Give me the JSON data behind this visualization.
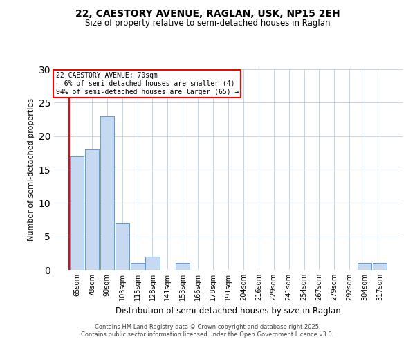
{
  "title1": "22, CAESTORY AVENUE, RAGLAN, USK, NP15 2EH",
  "title2": "Size of property relative to semi-detached houses in Raglan",
  "xlabel": "Distribution of semi-detached houses by size in Raglan",
  "ylabel": "Number of semi-detached properties",
  "categories": [
    "65sqm",
    "78sqm",
    "90sqm",
    "103sqm",
    "115sqm",
    "128sqm",
    "141sqm",
    "153sqm",
    "166sqm",
    "178sqm",
    "191sqm",
    "204sqm",
    "216sqm",
    "229sqm",
    "241sqm",
    "254sqm",
    "267sqm",
    "279sqm",
    "292sqm",
    "304sqm",
    "317sqm"
  ],
  "values": [
    17,
    18,
    23,
    7,
    1,
    2,
    0,
    1,
    0,
    0,
    0,
    0,
    0,
    0,
    0,
    0,
    0,
    0,
    0,
    1,
    1
  ],
  "bar_color": "#c6d9f0",
  "bar_edge_color": "#5b9bd5",
  "grid_color": "#b8cfe4",
  "background_color": "#ffffff",
  "annotation_title": "22 CAESTORY AVENUE: 70sqm",
  "annotation_line1": "← 6% of semi-detached houses are smaller (4)",
  "annotation_line2": "94% of semi-detached houses are larger (65) →",
  "footer_line1": "Contains HM Land Registry data © Crown copyright and database right 2025.",
  "footer_line2": "Contains public sector information licensed under the Open Government Licence v3.0.",
  "ylim": [
    0,
    30
  ],
  "yticks": [
    0,
    5,
    10,
    15,
    20,
    25,
    30
  ]
}
